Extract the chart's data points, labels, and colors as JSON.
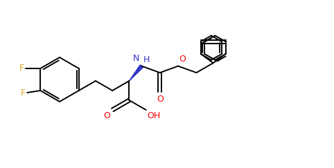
{
  "background": "#ffffff",
  "bond_color": "#000000",
  "atom_colors": {
    "O": "#ff0000",
    "N": "#3333cc",
    "F": "#daa520"
  },
  "figsize": [
    4.82,
    2.43
  ],
  "dpi": 100,
  "lw": 1.4
}
